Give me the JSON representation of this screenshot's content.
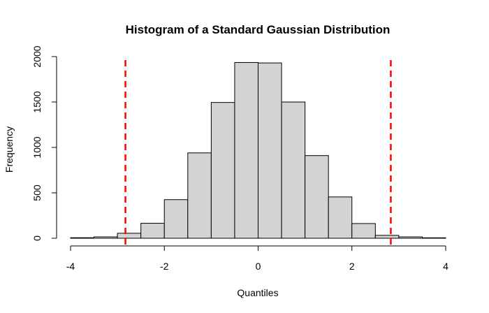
{
  "chart_data": {
    "type": "bar",
    "title": "Histogram of a Standard Gaussian Distribution",
    "xlabel": "Quantiles",
    "ylabel": "Frequency",
    "xlim": [
      -4,
      4
    ],
    "ylim": [
      0,
      2000
    ],
    "x_ticks": [
      -4,
      -2,
      0,
      2,
      4
    ],
    "y_ticks": [
      0,
      500,
      1000,
      1500,
      2000
    ],
    "bin_width": 0.5,
    "bins": [
      {
        "start": -4.0,
        "end": -3.5,
        "value": 6
      },
      {
        "start": -3.5,
        "end": -3.0,
        "value": 15
      },
      {
        "start": -3.0,
        "end": -2.5,
        "value": 55
      },
      {
        "start": -2.5,
        "end": -2.0,
        "value": 165
      },
      {
        "start": -2.0,
        "end": -1.5,
        "value": 425
      },
      {
        "start": -1.5,
        "end": -1.0,
        "value": 940
      },
      {
        "start": -1.0,
        "end": -0.5,
        "value": 1495
      },
      {
        "start": -0.5,
        "end": 0.0,
        "value": 1935
      },
      {
        "start": 0.0,
        "end": 0.5,
        "value": 1930
      },
      {
        "start": 0.5,
        "end": 1.0,
        "value": 1500
      },
      {
        "start": 1.0,
        "end": 1.5,
        "value": 910
      },
      {
        "start": 1.5,
        "end": 2.0,
        "value": 455
      },
      {
        "start": 2.0,
        "end": 2.5,
        "value": 162
      },
      {
        "start": 2.5,
        "end": 3.0,
        "value": 32
      },
      {
        "start": 3.0,
        "end": 3.5,
        "value": 15
      },
      {
        "start": 3.5,
        "end": 4.0,
        "value": 5
      }
    ],
    "bar_fill": "#d3d3d3",
    "bar_stroke": "#000000",
    "reference_lines": [
      {
        "x": -2.83,
        "color": "#ff0000",
        "style": "dashed"
      },
      {
        "x": 2.83,
        "color": "#ff0000",
        "style": "dashed"
      }
    ],
    "grid": false
  }
}
